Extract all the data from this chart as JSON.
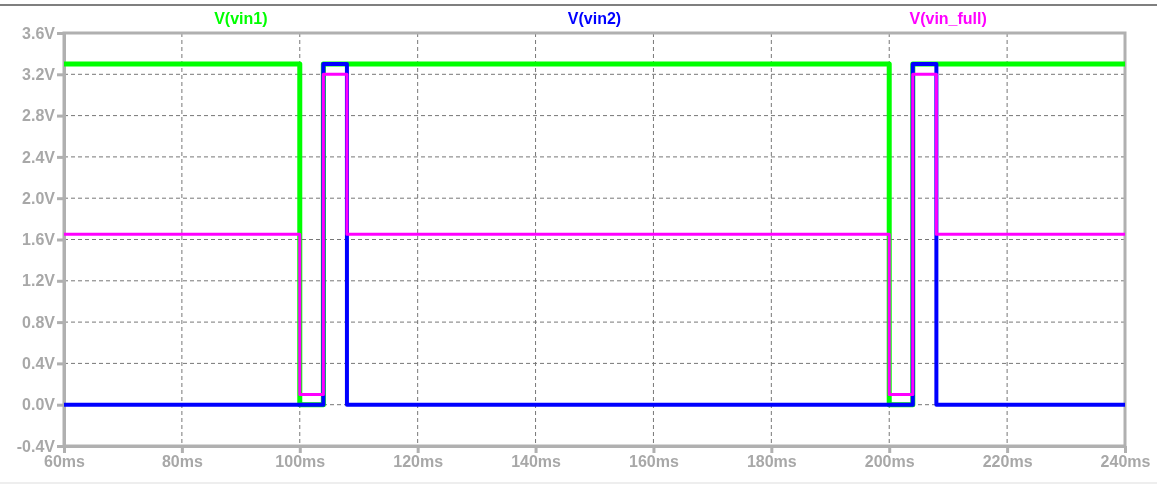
{
  "chart_data": {
    "type": "line",
    "xlim": [
      60,
      240
    ],
    "ylim": [
      -0.4,
      3.6
    ],
    "xticks": [
      {
        "value": 60,
        "label": "60ms"
      },
      {
        "value": 80,
        "label": "80ms"
      },
      {
        "value": 100,
        "label": "100ms"
      },
      {
        "value": 120,
        "label": "120ms"
      },
      {
        "value": 140,
        "label": "140ms"
      },
      {
        "value": 160,
        "label": "160ms"
      },
      {
        "value": 180,
        "label": "180ms"
      },
      {
        "value": 200,
        "label": "200ms"
      },
      {
        "value": 220,
        "label": "220ms"
      },
      {
        "value": 240,
        "label": "240ms"
      }
    ],
    "yticks": [
      {
        "value": -0.4,
        "label": "-0.4V"
      },
      {
        "value": 0,
        "label": "0.0V"
      },
      {
        "value": 0.4,
        "label": "0.4V"
      },
      {
        "value": 0.8,
        "label": "0.8V"
      },
      {
        "value": 1.2,
        "label": "1.2V"
      },
      {
        "value": 1.6,
        "label": "1.6V"
      },
      {
        "value": 2.0,
        "label": "2.0V"
      },
      {
        "value": 2.4,
        "label": "2.4V"
      },
      {
        "value": 2.8,
        "label": "2.8V"
      },
      {
        "value": 3.2,
        "label": "3.2V"
      },
      {
        "value": 3.6,
        "label": "3.6V"
      }
    ],
    "grid": true,
    "legend": "top",
    "line_style": "solid",
    "series": [
      {
        "name": "V(vin1)",
        "color": "#00ff00",
        "x": [
          60,
          100,
          100,
          104,
          104,
          200,
          200,
          204,
          204,
          240
        ],
        "values": [
          3.3,
          3.3,
          0,
          0,
          3.3,
          3.3,
          0,
          0,
          3.3,
          3.3
        ]
      },
      {
        "name": "V(vin2)",
        "color": "#0000ff",
        "x": [
          60,
          104,
          104,
          108,
          108,
          204,
          204,
          208,
          208,
          240
        ],
        "values": [
          0,
          0,
          3.3,
          3.3,
          0,
          0,
          3.3,
          3.3,
          0,
          0
        ]
      },
      {
        "name": "V(vin_full)",
        "color": "#ff00ff",
        "x": [
          60,
          100,
          100,
          104,
          104,
          108,
          108,
          200,
          200,
          204,
          204,
          208,
          208,
          240
        ],
        "values": [
          1.65,
          1.65,
          0.1,
          0.1,
          3.2,
          3.2,
          1.65,
          1.65,
          0.1,
          0.1,
          3.2,
          3.2,
          1.65,
          1.65
        ]
      }
    ]
  }
}
